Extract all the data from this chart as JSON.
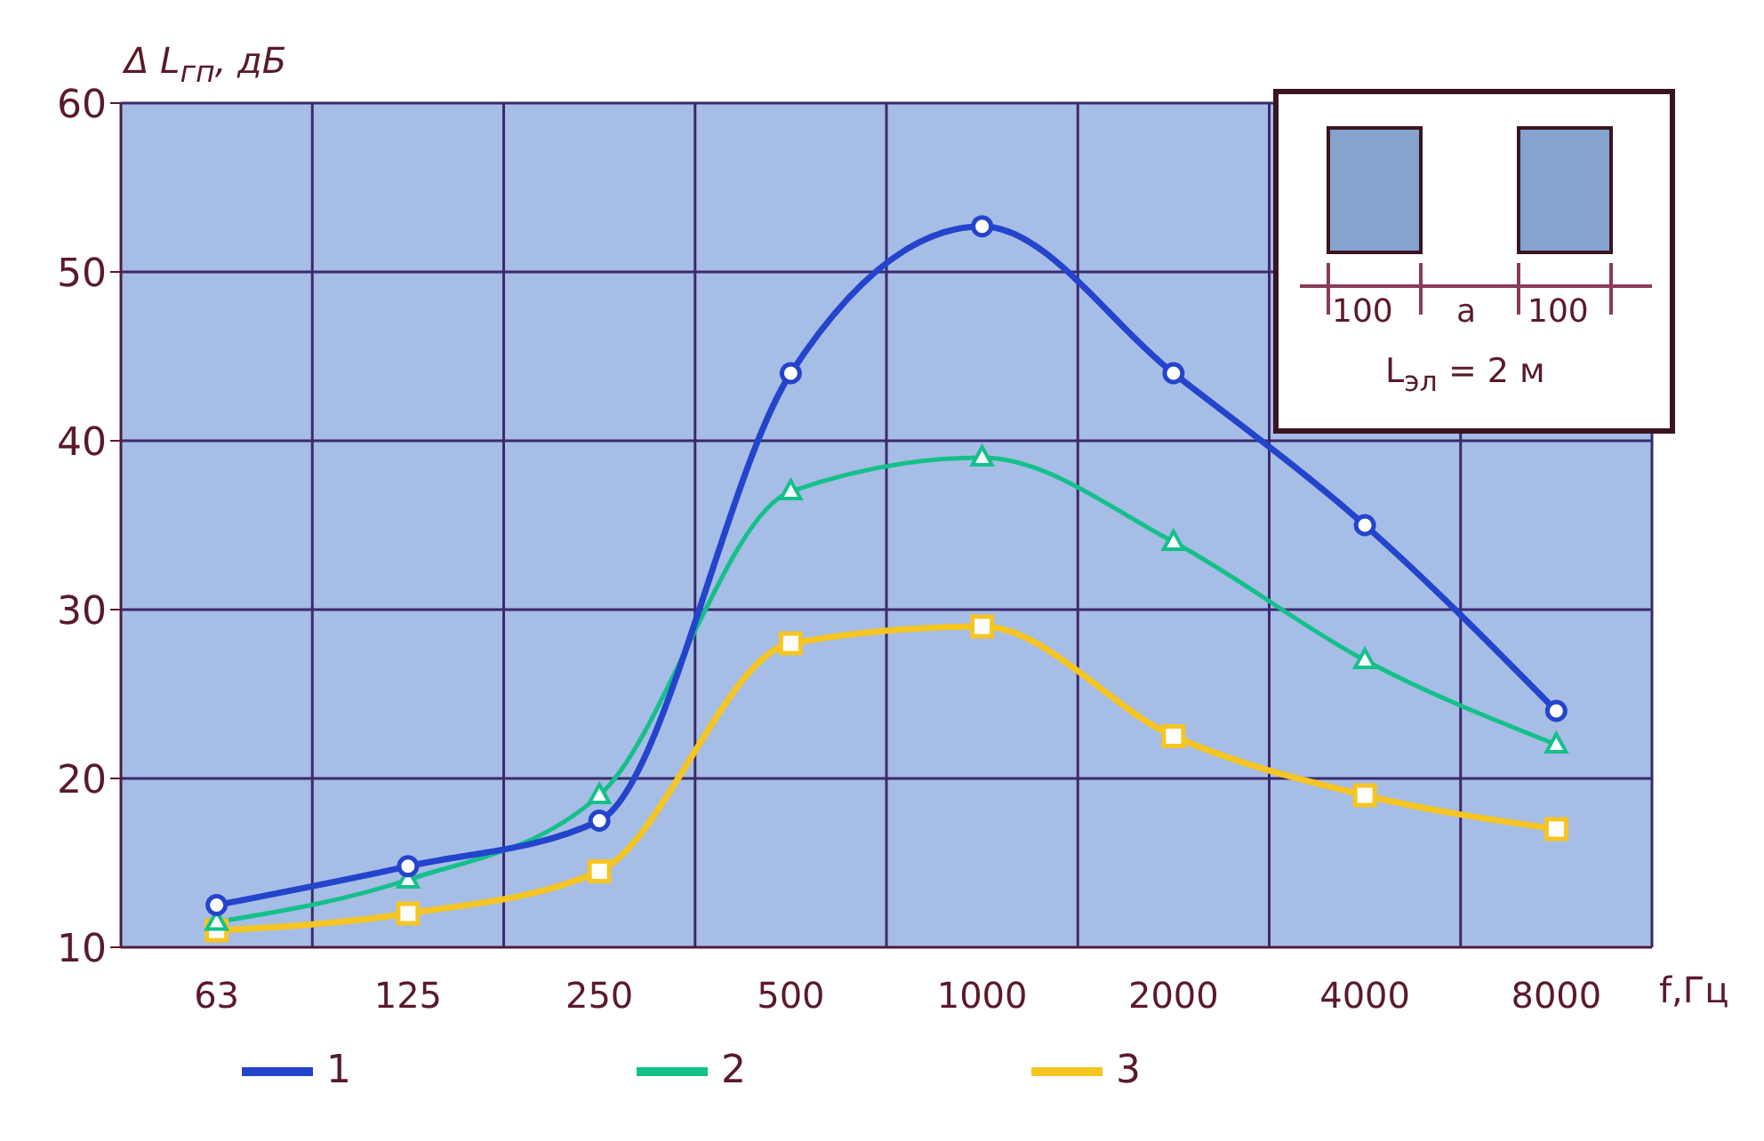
{
  "chart_data": {
    "type": "line",
    "ylabel": "Δ L$_{гп}$, дБ",
    "xlabel": "f,Гц",
    "categories": [
      "63",
      "125",
      "250",
      "500",
      "1000",
      "2000",
      "4000",
      "8000"
    ],
    "series": [
      {
        "name": "1",
        "color": "#2444cc",
        "marker": "circle",
        "values": [
          12.5,
          14.8,
          17.5,
          44,
          52.7,
          44,
          35,
          24
        ]
      },
      {
        "name": "2",
        "color": "#14c08a",
        "marker": "triangle",
        "values": [
          11.5,
          14,
          19,
          37,
          39,
          34,
          27,
          22
        ]
      },
      {
        "name": "3",
        "color": "#f5c522",
        "marker": "square",
        "values": [
          11,
          12,
          14.5,
          28,
          29,
          22.5,
          19,
          17
        ]
      }
    ],
    "ylim": [
      10,
      60
    ],
    "yticks": [
      10,
      20,
      30,
      40,
      50,
      60
    ],
    "grid": true,
    "legend": "bottom",
    "line_style": "solid",
    "annotations": [
      "100",
      "a",
      "100",
      "L$_{эл}$ = 2 м"
    ]
  }
}
